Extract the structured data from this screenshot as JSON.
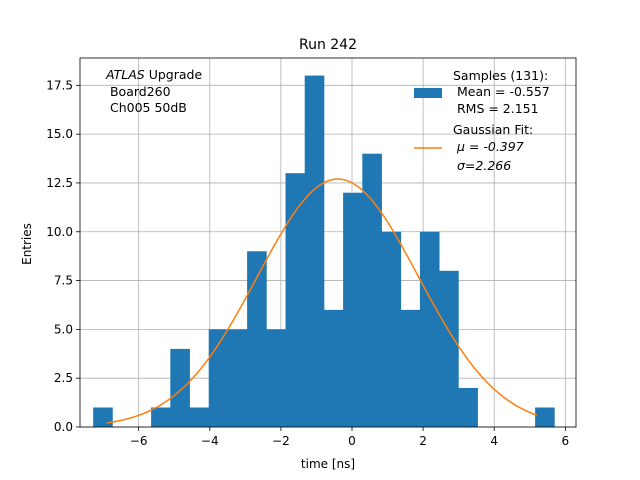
{
  "chart_data": {
    "type": "bar",
    "title": "Run 242",
    "xlabel": "time [ns]",
    "ylabel": "Entries",
    "xlim": [
      -7.65,
      6.3
    ],
    "ylim": [
      0,
      18.9
    ],
    "grid": true,
    "xticks": [
      -6,
      -4,
      -2,
      0,
      2,
      4,
      6
    ],
    "xtick_labels": [
      "−6",
      "−4",
      "−2",
      "0",
      "2",
      "4",
      "6"
    ],
    "yticks": [
      0.0,
      2.5,
      5.0,
      7.5,
      10.0,
      12.5,
      15.0,
      17.5
    ],
    "ytick_labels": [
      "0.0",
      "2.5",
      "5.0",
      "7.5",
      "10.0",
      "12.5",
      "15.0",
      "17.5"
    ],
    "bin_edges": [
      -7.28,
      -6.74,
      -6.19,
      -5.65,
      -5.11,
      -4.57,
      -4.03,
      -3.49,
      -2.95,
      -2.41,
      -1.87,
      -1.33,
      -0.79,
      -0.25,
      0.29,
      0.83,
      1.37,
      1.91,
      2.45,
      2.99,
      3.53,
      4.07,
      4.61,
      5.15,
      5.69
    ],
    "counts": [
      1,
      0,
      0,
      1,
      4,
      1,
      5,
      5,
      9,
      5,
      13,
      18,
      6,
      12,
      14,
      10,
      6,
      10,
      8,
      2,
      0,
      0,
      0,
      1
    ],
    "gaussian": {
      "mu": -0.397,
      "sigma": 2.266,
      "amplitude": 12.7,
      "x_range": [
        -6.9,
        5.2
      ]
    },
    "annotation": {
      "line1_italic": "ATLAS",
      "line1_rest": " Upgrade",
      "line2": " Board260",
      "line3": " Ch005 50dB"
    },
    "legend": {
      "placement": "top-right",
      "hist_lines": [
        "Samples (131):",
        " Mean = -0.557",
        " RMS = 2.151"
      ],
      "fit_lines": [
        "Gaussian Fit:",
        "μ = -0.397",
        "σ=2.266"
      ]
    },
    "colors": {
      "hist": "#1f77b4",
      "fit": "#ff7f0e",
      "grid": "#b0b0b0"
    }
  }
}
